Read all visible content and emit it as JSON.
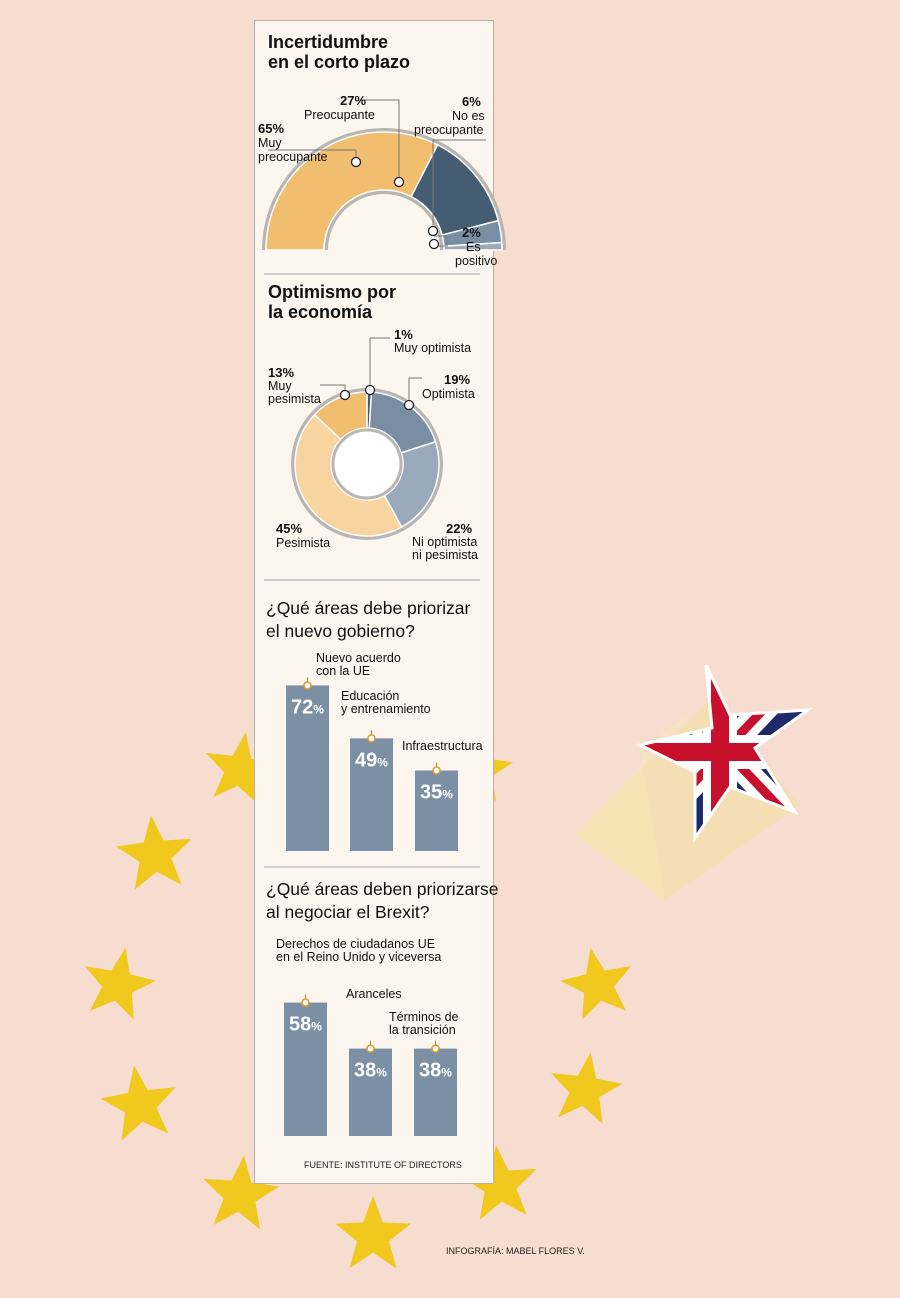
{
  "colors": {
    "background": "#f6ddd0",
    "panel": "#fdf6ee",
    "star": "#f0c81e",
    "gold": "#f1bd6e",
    "light_gold": "#f8d5a0",
    "dark_slate": "#455d73",
    "slate": "#7a8ea3",
    "light_slate": "#9aaabb",
    "bar": "#7b8fa5",
    "union_red": "#c8102e",
    "union_blue": "#1e2a6b"
  },
  "icons": [
    "eu-star-icon",
    "union-jack-star-icon"
  ],
  "chart_data": [
    {
      "type": "pie",
      "variant": "half-donut",
      "title": "Incertidumbre en el corto plazo",
      "title_lines": [
        "Incertidumbre",
        "en el corto plazo"
      ],
      "slices": [
        {
          "pct_label": "65%",
          "value": 65,
          "name_lines": [
            "Muy",
            "preocupante"
          ],
          "color": "#f1bd6e"
        },
        {
          "pct_label": "27%",
          "value": 27,
          "name_lines": [
            "Preocupante"
          ],
          "color": "#455d73"
        },
        {
          "pct_label": "6%",
          "value": 6,
          "name_lines": [
            "No es",
            "preocupante"
          ],
          "color": "#7a8ea3"
        },
        {
          "pct_label": "2%",
          "value": 2,
          "name_lines": [
            "Es",
            "positivo"
          ],
          "color": "#9aaabb"
        }
      ]
    },
    {
      "type": "pie",
      "variant": "donut",
      "title": "Optimismo por la economía",
      "title_lines": [
        "Optimismo por",
        "la economía"
      ],
      "slices": [
        {
          "pct_label": "1%",
          "value": 1,
          "name_lines": [
            "Muy optimista"
          ],
          "color": "#455d73"
        },
        {
          "pct_label": "19%",
          "value": 19,
          "name_lines": [
            "Optimista"
          ],
          "color": "#7a8ea3"
        },
        {
          "pct_label": "22%",
          "value": 22,
          "name_lines": [
            "Ni optimista",
            "ni pesimista"
          ],
          "color": "#9aaabb"
        },
        {
          "pct_label": "45%",
          "value": 45,
          "name_lines": [
            "Pesimista"
          ],
          "color": "#f8d5a0"
        },
        {
          "pct_label": "13%",
          "value": 13,
          "name_lines": [
            "Muy",
            "pesimista"
          ],
          "color": "#f1bd6e"
        }
      ]
    },
    {
      "type": "bar",
      "title": "¿Qué áreas debe priorizar el nuevo gobierno?",
      "title_lines": [
        "¿Qué áreas debe priorizar",
        "el nuevo gobierno?"
      ],
      "categories": [
        [
          "Nuevo acuerdo",
          "con la UE"
        ],
        [
          "Educación",
          "y entrenamiento"
        ],
        [
          "Infraestructura"
        ]
      ],
      "values": [
        72,
        49,
        35
      ],
      "value_numbers": [
        "72",
        "49",
        "35"
      ],
      "unit": "%",
      "ylim": [
        0,
        100
      ]
    },
    {
      "type": "bar",
      "title": "¿Qué áreas deben priorizarse al negociar el Brexit?",
      "title_lines": [
        "¿Qué áreas deben priorizarse",
        "al negociar el Brexit?"
      ],
      "categories": [
        [
          "Derechos de ciudadanos UE",
          "en el Reino Unido y viceversa"
        ],
        [
          "Aranceles"
        ],
        [
          "Términos de",
          "la transición"
        ]
      ],
      "values": [
        58,
        38,
        38
      ],
      "value_numbers": [
        "58",
        "38",
        "38"
      ],
      "unit": "%",
      "ylim": [
        0,
        100
      ]
    }
  ],
  "source": "FUENTE: INSTITUTE OF DIRECTORS",
  "credit": "INFOGRAFÍA: MABEL FLORES V."
}
